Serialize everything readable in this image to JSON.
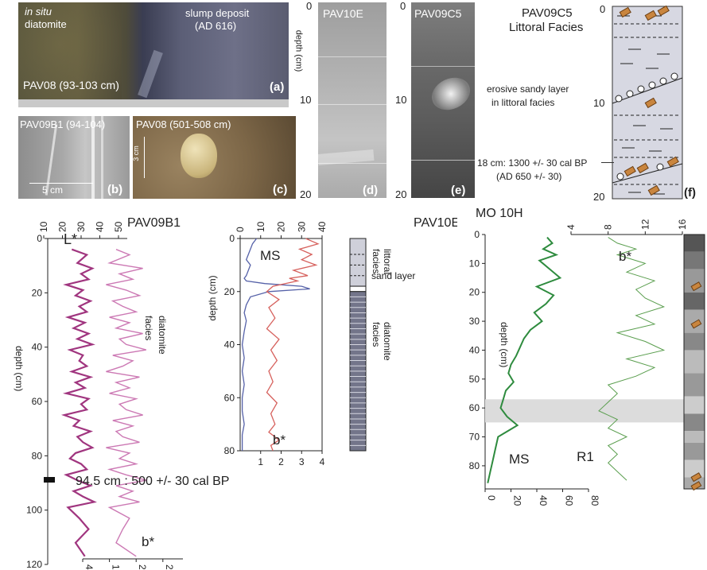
{
  "panel_a": {
    "label_insitu_1": "in situ",
    "label_insitu_2": "diatomite",
    "label_slump_1": "slump deposit",
    "label_slump_2": "(AD 616)",
    "core_label": "PAV08 (93-103 cm)",
    "tag": "(a)"
  },
  "panel_b": {
    "core_label": "PAV09B1 (94-104)",
    "scale": "5 cm",
    "tag": "(b)"
  },
  "panel_c": {
    "core_label": "PAV08 (501-508 cm)",
    "scale": "3 cm",
    "tag": "(c)"
  },
  "panel_d": {
    "core_label": "PAV10E",
    "ticks": [
      "0",
      "10",
      "20"
    ],
    "ylabel": "depth (cm)",
    "tag": "(d)"
  },
  "panel_e": {
    "core_label": "PAV09C5",
    "ticks": [
      "0",
      "10",
      "20"
    ],
    "tag": "(e)"
  },
  "panel_f": {
    "title_1": "PAV09C5",
    "title_2": "Littoral Facies",
    "annotation_1": "erosive sandy layer",
    "annotation_2": "in littoral facies",
    "date_1": "18 cm: 1300 +/- 30 cal BP",
    "date_2": "(AD 650 +/- 30)",
    "ticks": [
      "0",
      "10",
      "20"
    ],
    "tag": "(f)"
  },
  "chart_data": [
    {
      "type": "line",
      "title": "PAV09B1",
      "ylabel": "depth (cm)",
      "ylim": [
        120,
        0
      ],
      "top_axis": {
        "ticks": [
          "10",
          "20",
          "30",
          "40",
          "50"
        ]
      },
      "bottom_axis": {
        "ticks": [
          "4",
          "12",
          "20",
          "28"
        ],
        "label": "b*"
      },
      "y_ticks": [
        "0",
        "20",
        "40",
        "60",
        "80",
        "100",
        "120"
      ],
      "series": [
        {
          "name": "L*",
          "color": "#a0357f",
          "x": [
            25,
            33,
            28,
            36,
            30,
            34,
            22,
            31,
            27,
            35,
            29,
            33,
            23,
            32,
            26,
            34,
            28,
            36,
            24,
            31,
            29,
            33,
            25,
            35,
            27,
            32,
            22,
            34,
            30,
            33,
            21,
            29,
            26,
            35,
            28,
            31,
            36,
            27,
            24,
            30,
            33,
            22,
            28,
            35,
            26,
            31,
            37,
            23,
            29,
            34,
            27,
            32
          ],
          "y": [
            4,
            6,
            9,
            11,
            13,
            15,
            17,
            19,
            21,
            23,
            25,
            27,
            29,
            31,
            33,
            35,
            37,
            39,
            41,
            43,
            45,
            47,
            49,
            51,
            53,
            55,
            57,
            59,
            61,
            63,
            65,
            67,
            69,
            71,
            73,
            75,
            77,
            79,
            81,
            83,
            85,
            87,
            89,
            91,
            93,
            95,
            97,
            99,
            103,
            107,
            112,
            117
          ]
        },
        {
          "name": "b*",
          "color": "#cc79b4",
          "x": [
            14,
            18,
            12,
            22,
            15,
            19,
            11,
            17,
            21,
            13,
            16,
            20,
            12,
            18,
            14,
            22,
            15,
            17,
            23,
            13,
            19,
            16,
            11,
            21,
            14,
            18,
            12,
            20,
            15,
            17,
            22,
            13,
            19,
            14,
            16,
            21,
            11,
            18,
            15,
            20,
            12,
            17,
            23,
            14,
            19,
            15,
            21,
            12,
            18,
            16,
            14,
            20
          ],
          "y": [
            4,
            6,
            9,
            11,
            13,
            15,
            17,
            19,
            21,
            23,
            25,
            27,
            29,
            31,
            33,
            35,
            37,
            39,
            41,
            43,
            45,
            47,
            49,
            51,
            53,
            55,
            57,
            59,
            61,
            63,
            65,
            67,
            69,
            71,
            73,
            75,
            77,
            79,
            81,
            83,
            85,
            87,
            89,
            91,
            93,
            95,
            97,
            99,
            103,
            107,
            112,
            117
          ]
        }
      ],
      "annotations": [
        "L*",
        "diatomite",
        "facies",
        "94.5 cm : 500 +/- 30 cal BP"
      ]
    },
    {
      "type": "line",
      "title": "PAV10E",
      "ylabel": "depth (cm)",
      "ylim": [
        80,
        0
      ],
      "top_axis": {
        "ticks": [
          "0",
          "10",
          "20",
          "30",
          "40"
        ]
      },
      "bottom_axis": {
        "ticks": [
          "1",
          "2",
          "3",
          "4"
        ]
      },
      "y_ticks": [
        "0",
        "20",
        "40",
        "60",
        "80"
      ],
      "series": [
        {
          "name": "MS",
          "color": "#5561a8",
          "x": [
            8,
            6,
            5,
            4,
            3,
            5,
            4,
            3,
            2,
            3,
            12,
            30,
            34,
            14,
            5,
            3,
            2,
            3,
            2,
            1,
            2,
            1,
            2,
            1,
            1,
            2,
            1,
            1,
            1,
            1
          ],
          "y": [
            0,
            2,
            4,
            6,
            8,
            10,
            12,
            14,
            15,
            16,
            17,
            18,
            19,
            20,
            22,
            25,
            28,
            31,
            35,
            40,
            45,
            50,
            55,
            60,
            65,
            70,
            74,
            77,
            79,
            80
          ]
        },
        {
          "name": "b*",
          "color": "#d6605c",
          "x": [
            3.2,
            3.8,
            2.9,
            3.5,
            3.0,
            3.7,
            2.6,
            3.3,
            2.4,
            2.8,
            2.2,
            1.6,
            1.3,
            1.9,
            1.4,
            1.7,
            1.3,
            1.9,
            1.5,
            1.8,
            1.4,
            1.6,
            1.3,
            1.8,
            1.5,
            1.7,
            1.4,
            1.9,
            1.5,
            1.6
          ],
          "y": [
            0,
            2,
            4,
            6,
            8,
            10,
            12,
            14,
            15,
            16,
            17,
            18,
            20,
            23,
            26,
            30,
            34,
            38,
            42,
            46,
            50,
            54,
            58,
            62,
            66,
            70,
            73,
            76,
            78,
            80
          ]
        }
      ],
      "annotations": [
        "MS",
        "b*",
        "littoral",
        "facies",
        "sand layer",
        "diatomite",
        "facies"
      ]
    },
    {
      "type": "line",
      "title": "MO 10H",
      "ylabel": "depth (cm)",
      "ylim": [
        88,
        0
      ],
      "top_axis": {
        "ticks": [
          "4",
          "8",
          "12",
          "16"
        ]
      },
      "bottom_axis": {
        "ticks": [
          "0",
          "20",
          "40",
          "60",
          "80"
        ]
      },
      "y_ticks": [
        "0",
        "10",
        "20",
        "30",
        "40",
        "50",
        "60",
        "70",
        "80"
      ],
      "series": [
        {
          "name": "MS",
          "color": "#2e8b3e",
          "x": [
            48,
            52,
            45,
            55,
            42,
            50,
            58,
            40,
            53,
            47,
            38,
            44,
            35,
            30,
            27,
            24,
            20,
            18,
            22,
            16,
            14,
            12,
            17,
            25,
            10,
            8,
            6,
            4,
            2
          ],
          "y": [
            1,
            3,
            5,
            7,
            9,
            12,
            15,
            18,
            21,
            24,
            27,
            30,
            33,
            36,
            39,
            42,
            45,
            48,
            51,
            54,
            57,
            60,
            63,
            66,
            70,
            74,
            78,
            82,
            86
          ]
        },
        {
          "name": "b*",
          "color": "#5a9e4e",
          "x": [
            8,
            9,
            11,
            9,
            12,
            10,
            13,
            11,
            12,
            14,
            11,
            13,
            9,
            12,
            14,
            10,
            13,
            11,
            8,
            9,
            8,
            7,
            9,
            8,
            10,
            8,
            9,
            8,
            9,
            10
          ],
          "y": [
            1,
            3,
            5,
            7,
            10,
            13,
            16,
            19,
            22,
            25,
            28,
            31,
            34,
            37,
            40,
            43,
            46,
            49,
            52,
            55,
            58,
            61,
            64,
            67,
            70,
            73,
            76,
            79,
            82,
            85
          ]
        }
      ],
      "annotations": [
        "R1",
        "MS",
        "b*"
      ]
    }
  ]
}
